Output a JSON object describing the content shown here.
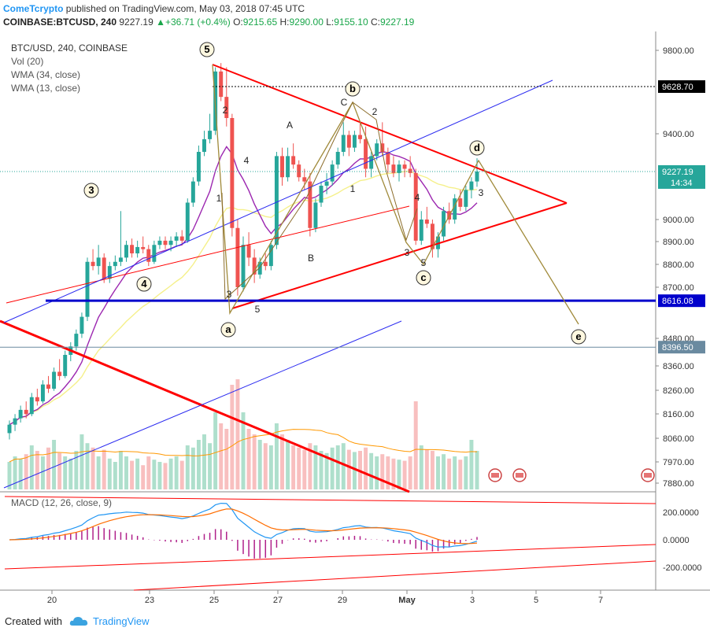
{
  "header": {
    "author": "ComeTcrypto",
    "published_text": "published on TradingView.com, May 03, 2018 07:45 UTC",
    "symbol": "COINBASE:BTCUSD, 240",
    "price": "9227.19",
    "change": "+36.71 (+0.4%)",
    "o_label": "O:",
    "o_value": "9215.65",
    "h_label": "H:",
    "h_value": "9290.00",
    "l_label": "L:",
    "l_value": "9155.10",
    "c_label": "C:",
    "c_value": "9227.19"
  },
  "legend": {
    "title": "BTC/USD, 240, COINBASE",
    "items": [
      "Vol (20)",
      "WMA (34, close)",
      "WMA (13, close)"
    ]
  },
  "macd_label": "MACD (12, 26, close, 9)",
  "footer": {
    "created_with": "Created with",
    "brand": "TradingView"
  },
  "colors": {
    "up": "#26a69a",
    "down": "#ef5350",
    "wma34": "#f5f08a",
    "wma13": "#9c27b0",
    "trend_red": "#ff0000",
    "channel_blue": "#2a2af0",
    "support_blue": "#0000cc",
    "wave": "#a08a3a",
    "macd": "#2196f3",
    "signal": "#ff6d00"
  },
  "chart_data": [
    {
      "type": "candlestick",
      "title": "BTC/USD, 240, COINBASE",
      "x_tick_labels": [
        "20",
        "23",
        "25",
        "27",
        "29",
        "May",
        "3",
        "5",
        "7"
      ],
      "y_tick_labels": [
        "9800.00",
        "9400.00",
        "9000.00",
        "8900.00",
        "8800.00",
        "8700.00",
        "8480.00",
        "8360.00",
        "8260.00",
        "8160.00",
        "8060.00",
        "7970.00",
        "7880.00"
      ],
      "ylim": [
        7880,
        9800
      ],
      "price_labels": [
        {
          "label": "9628.70",
          "value": 9628.7
        },
        {
          "label": "9227.19",
          "value": 9227.19,
          "sub": "14:34"
        },
        {
          "label": "8616.08",
          "value": 8616.08
        },
        {
          "label": "8396.50",
          "value": 8396.5
        }
      ],
      "candles_ohlc": [
        [
          7990,
          8050,
          7960,
          8030
        ],
        [
          8030,
          8080,
          8000,
          8060
        ],
        [
          8060,
          8120,
          8040,
          8100
        ],
        [
          8100,
          8140,
          8060,
          8080
        ],
        [
          8080,
          8180,
          8070,
          8160
        ],
        [
          8160,
          8200,
          8120,
          8140
        ],
        [
          8140,
          8240,
          8130,
          8220
        ],
        [
          8220,
          8260,
          8180,
          8200
        ],
        [
          8200,
          8300,
          8190,
          8280
        ],
        [
          8280,
          8340,
          8240,
          8260
        ],
        [
          8260,
          8380,
          8250,
          8360
        ],
        [
          8360,
          8420,
          8330,
          8400
        ],
        [
          8400,
          8480,
          8380,
          8460
        ],
        [
          8460,
          8560,
          8440,
          8540
        ],
        [
          8540,
          8820,
          8520,
          8800
        ],
        [
          8800,
          8860,
          8760,
          8780
        ],
        [
          8780,
          8880,
          8740,
          8820
        ],
        [
          8820,
          8840,
          8700,
          8720
        ],
        [
          8720,
          8800,
          8700,
          8780
        ],
        [
          8780,
          8830,
          8760,
          8800
        ],
        [
          8800,
          9040,
          8780,
          8820
        ],
        [
          8820,
          8900,
          8800,
          8880
        ],
        [
          8880,
          8910,
          8820,
          8840
        ],
        [
          8840,
          8900,
          8820,
          8870
        ],
        [
          8870,
          8920,
          8840,
          8860
        ],
        [
          8860,
          8880,
          8780,
          8800
        ],
        [
          8800,
          8900,
          8790,
          8880
        ],
        [
          8880,
          8920,
          8860,
          8900
        ],
        [
          8900,
          8920,
          8860,
          8880
        ],
        [
          8880,
          8920,
          8850,
          8900
        ],
        [
          8900,
          8940,
          8870,
          8920
        ],
        [
          8920,
          8950,
          8880,
          8900
        ],
        [
          8900,
          9100,
          8890,
          9080
        ],
        [
          9080,
          9200,
          9060,
          9180
        ],
        [
          9180,
          9350,
          9160,
          9320
        ],
        [
          9320,
          9420,
          9300,
          9380
        ],
        [
          9380,
          9500,
          9360,
          9420
        ],
        [
          9420,
          9720,
          9400,
          9700
        ],
        [
          9700,
          9740,
          9560,
          9580
        ],
        [
          9580,
          9720,
          9440,
          9480
        ],
        [
          9480,
          9500,
          8920,
          8960
        ],
        [
          8960,
          9000,
          8640,
          8680
        ],
        [
          8680,
          8920,
          8660,
          8880
        ],
        [
          8880,
          8940,
          8780,
          8820
        ],
        [
          8820,
          8860,
          8700,
          8740
        ],
        [
          8740,
          8820,
          8720,
          8800
        ],
        [
          8800,
          8840,
          8760,
          8780
        ],
        [
          8780,
          8900,
          8760,
          8880
        ],
        [
          8880,
          9320,
          8860,
          9300
        ],
        [
          9300,
          9340,
          9160,
          9200
        ],
        [
          9200,
          9340,
          9180,
          9300
        ],
        [
          9300,
          9360,
          9240,
          9260
        ],
        [
          9260,
          9280,
          9180,
          9200
        ],
        [
          9200,
          9240,
          9140,
          9180
        ],
        [
          9180,
          9220,
          8920,
          8960
        ],
        [
          8960,
          9100,
          8940,
          9080
        ],
        [
          9080,
          9180,
          9060,
          9160
        ],
        [
          9160,
          9220,
          9120,
          9180
        ],
        [
          9180,
          9280,
          9160,
          9260
        ],
        [
          9260,
          9340,
          9240,
          9320
        ],
        [
          9320,
          9460,
          9300,
          9400
        ],
        [
          9400,
          9420,
          9300,
          9340
        ],
        [
          9340,
          9420,
          9320,
          9400
        ],
        [
          9400,
          9460,
          9360,
          9380
        ],
        [
          9380,
          9440,
          9200,
          9240
        ],
        [
          9240,
          9320,
          9200,
          9300
        ],
        [
          9300,
          9380,
          9280,
          9360
        ],
        [
          9360,
          9460,
          9300,
          9320
        ],
        [
          9320,
          9340,
          9220,
          9260
        ],
        [
          9260,
          9300,
          9200,
          9220
        ],
        [
          9220,
          9280,
          9180,
          9260
        ],
        [
          9260,
          9280,
          9200,
          9240
        ],
        [
          9240,
          9300,
          9200,
          9220
        ],
        [
          9220,
          9240,
          8880,
          8900
        ],
        [
          8900,
          9040,
          8880,
          9000
        ],
        [
          9000,
          9060,
          8960,
          8980
        ],
        [
          8980,
          9000,
          8820,
          8860
        ],
        [
          8860,
          8940,
          8820,
          8920
        ],
        [
          8920,
          9060,
          8900,
          9040
        ],
        [
          9040,
          9080,
          8980,
          9000
        ],
        [
          9000,
          9120,
          8980,
          9100
        ],
        [
          9100,
          9140,
          9040,
          9060
        ],
        [
          9060,
          9160,
          9040,
          9140
        ],
        [
          9140,
          9200,
          9100,
          9180
        ],
        [
          9180,
          9290,
          9155,
          9227
        ]
      ],
      "volume_relative": [
        0.25,
        0.3,
        0.28,
        0.32,
        0.4,
        0.35,
        0.3,
        0.38,
        0.45,
        0.33,
        0.3,
        0.28,
        0.35,
        0.5,
        0.42,
        0.38,
        0.3,
        0.36,
        0.28,
        0.25,
        0.35,
        0.3,
        0.26,
        0.28,
        0.22,
        0.3,
        0.27,
        0.25,
        0.24,
        0.28,
        0.3,
        0.26,
        0.4,
        0.38,
        0.45,
        0.5,
        0.42,
        0.7,
        0.6,
        0.55,
        0.95,
        1.0,
        0.7,
        0.55,
        0.5,
        0.45,
        0.42,
        0.4,
        0.6,
        0.5,
        0.45,
        0.4,
        0.38,
        0.36,
        0.42,
        0.4,
        0.35,
        0.33,
        0.38,
        0.4,
        0.42,
        0.36,
        0.34,
        0.35,
        0.38,
        0.33,
        0.3,
        0.32,
        0.3,
        0.28,
        0.27,
        0.26,
        0.3,
        0.8,
        0.4,
        0.36,
        0.35,
        0.3,
        0.32,
        0.28,
        0.3,
        0.27,
        0.3,
        0.45,
        0.35
      ],
      "wave_labels": [
        "5",
        "b",
        "C",
        "2",
        "A",
        "4",
        "2",
        "3",
        "1",
        "1",
        "B",
        "3",
        "4",
        "3",
        "5",
        "d",
        "e",
        "c",
        "a",
        "4",
        "3",
        "5"
      ],
      "macd": {
        "y_tick_labels": [
          "200.0000",
          "0.0000",
          "-200.0000"
        ],
        "ylim": [
          -330,
          330
        ]
      }
    }
  ]
}
